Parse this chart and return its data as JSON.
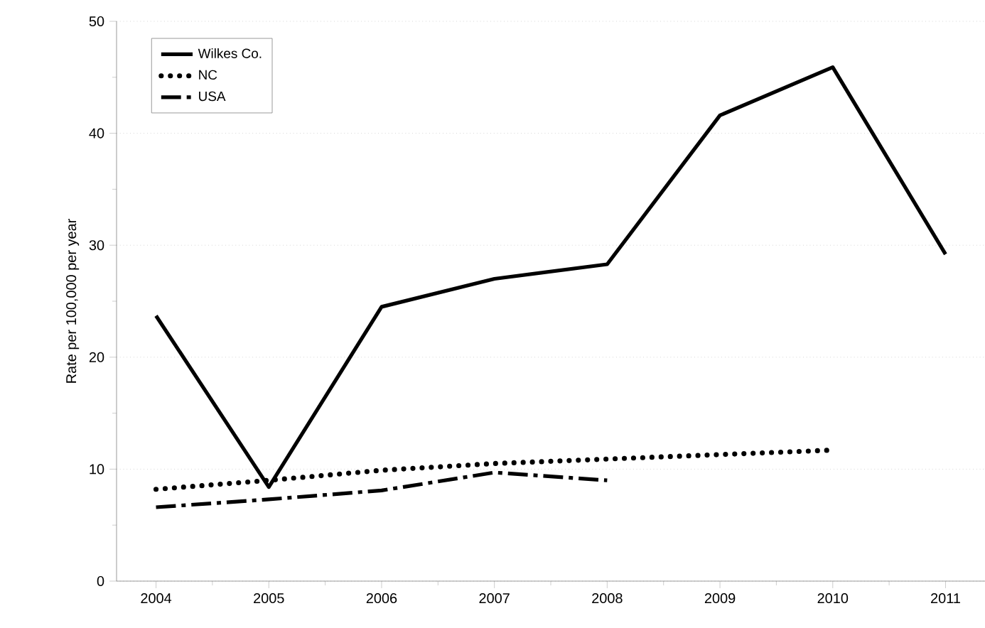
{
  "chart_data": {
    "type": "line",
    "ylabel": "Rate per 100,000 per year",
    "x": [
      2004,
      2005,
      2006,
      2007,
      2008,
      2009,
      2010,
      2011
    ],
    "xlim": [
      2003.65,
      2011.35
    ],
    "xticks": [
      2004,
      2005,
      2006,
      2007,
      2008,
      2009,
      2010,
      2011
    ],
    "ylim": [
      0,
      50
    ],
    "yticks": [
      0,
      10,
      20,
      30,
      40,
      50
    ],
    "grid": "y",
    "legend": "top left",
    "marker": "none",
    "series": [
      {
        "name": "Wilkes Co.",
        "color": "#000000",
        "line_style": "solid",
        "values": [
          23.7,
          8.4,
          24.5,
          27.0,
          28.3,
          41.6,
          45.9,
          29.2
        ]
      },
      {
        "name": "NC",
        "color": "#000000",
        "line_style": "dotted",
        "values": [
          8.2,
          9.0,
          9.9,
          10.5,
          10.9,
          11.3,
          11.7,
          null
        ]
      },
      {
        "name": "USA",
        "color": "#000000",
        "line_style": "dashdot",
        "values": [
          6.6,
          7.3,
          8.1,
          9.7,
          9.0,
          null,
          null,
          null
        ]
      }
    ]
  }
}
